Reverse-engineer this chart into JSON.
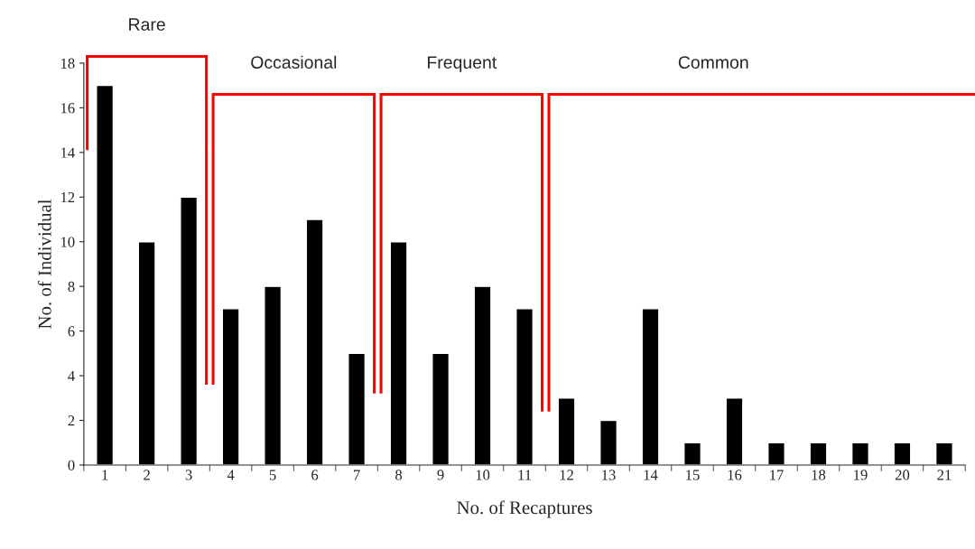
{
  "chart_data": {
    "type": "bar",
    "xlabel": "No. of Recaptures",
    "ylabel": "No. of Individual",
    "categories": [
      "1",
      "2",
      "3",
      "4",
      "5",
      "6",
      "7",
      "8",
      "9",
      "10",
      "11",
      "12",
      "13",
      "14",
      "15",
      "16",
      "17",
      "18",
      "19",
      "20",
      "21"
    ],
    "values": [
      17,
      10,
      12,
      7,
      8,
      11,
      5,
      10,
      5,
      8,
      7,
      3,
      2,
      7,
      1,
      3,
      1,
      1,
      1,
      1,
      1
    ],
    "color": "#000000",
    "ylim": [
      0,
      18
    ],
    "yticks": [
      0,
      2,
      4,
      6,
      8,
      10,
      12,
      14,
      16,
      18
    ],
    "grid": false,
    "legend": false,
    "annotations": [
      "Rare",
      "Occasional",
      "Frequent",
      "Common"
    ]
  }
}
